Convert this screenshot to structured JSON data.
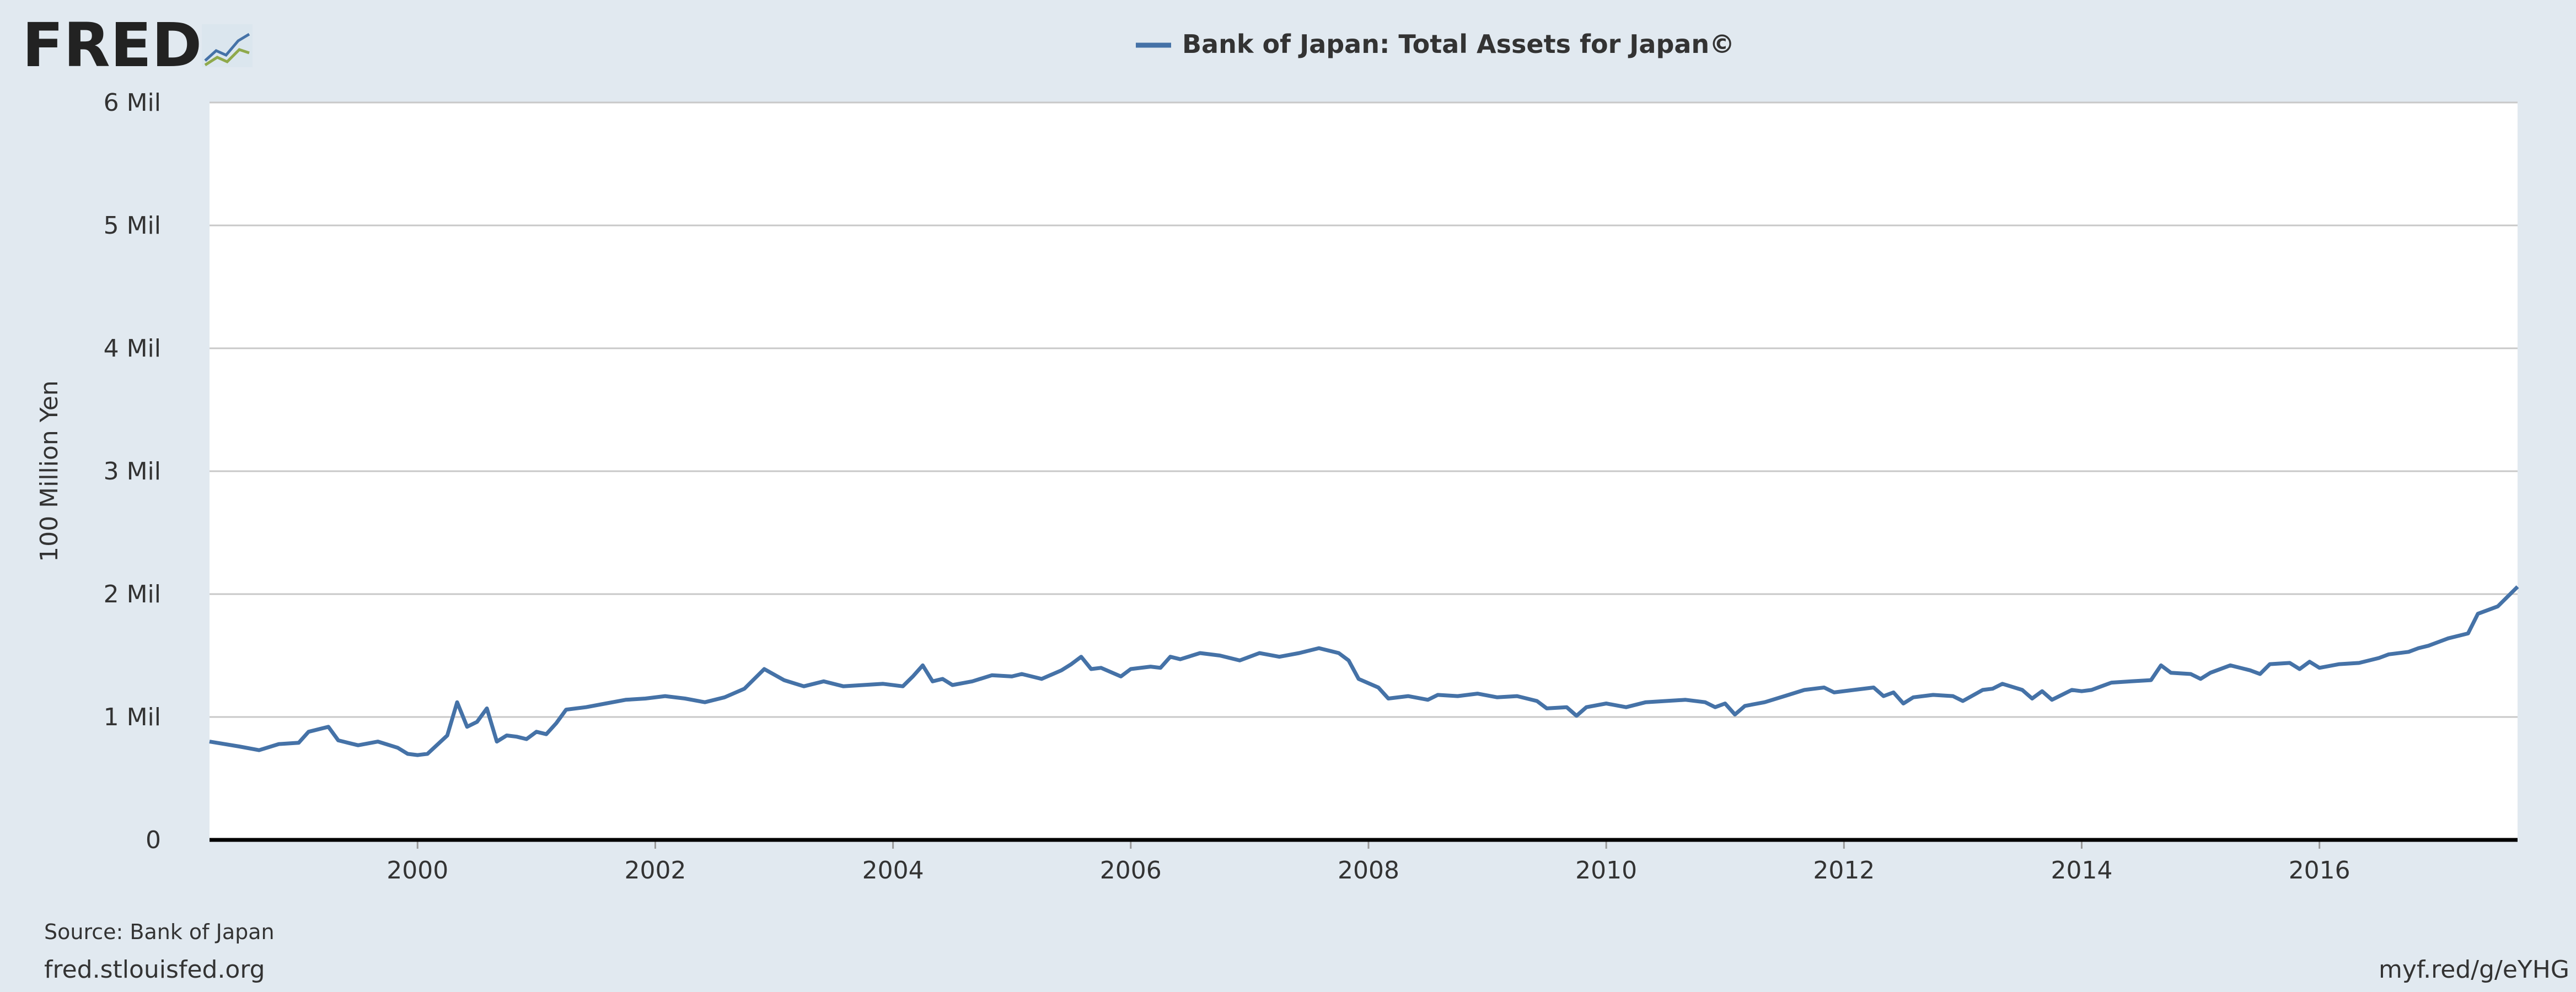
{
  "header": {
    "logo_text": "FRED",
    "legend_label": "Bank of Japan: Total Assets for Japan©"
  },
  "footer": {
    "source": "Source: Bank of Japan",
    "site": "fred.stlouisfed.org",
    "short_url": "myf.red/g/eYHG"
  },
  "colors": {
    "series": "#4572a7",
    "plot_bg": "#ffffff",
    "page_bg": "#e1e9f0",
    "grid": "#c8c8c8",
    "text": "#333333"
  },
  "icons": {
    "logo_graph": "chart-line-icon"
  },
  "chart_data": {
    "type": "line",
    "title": "",
    "ylabel": "100 Million Yen",
    "xlabel": "",
    "xlim": [
      1998.25,
      2017.6667
    ],
    "ylim": [
      0,
      6000000
    ],
    "grid": true,
    "legend_position": "top-center",
    "x_ticks": [
      {
        "value": 2000,
        "label": "2000"
      },
      {
        "value": 2002,
        "label": "2002"
      },
      {
        "value": 2004,
        "label": "2004"
      },
      {
        "value": 2006,
        "label": "2006"
      },
      {
        "value": 2008,
        "label": "2008"
      },
      {
        "value": 2010,
        "label": "2010"
      },
      {
        "value": 2012,
        "label": "2012"
      },
      {
        "value": 2014,
        "label": "2014"
      },
      {
        "value": 2016,
        "label": "2016"
      }
    ],
    "y_ticks": [
      {
        "value": 0,
        "label": "0"
      },
      {
        "value": 1000000,
        "label": "1 Mil"
      },
      {
        "value": 2000000,
        "label": "2 Mil"
      },
      {
        "value": 3000000,
        "label": "3 Mil"
      },
      {
        "value": 4000000,
        "label": "4 Mil"
      },
      {
        "value": 5000000,
        "label": "5 Mil"
      },
      {
        "value": 6000000,
        "label": "6 Mil"
      }
    ],
    "series": [
      {
        "name": "Bank of Japan: Total Assets for Japan©",
        "points": [
          [
            1998.25,
            800000
          ],
          [
            1998.5,
            760000
          ],
          [
            1998.667,
            730000
          ],
          [
            1998.833,
            780000
          ],
          [
            1999.0,
            790000
          ],
          [
            1999.083,
            880000
          ],
          [
            1999.25,
            920000
          ],
          [
            1999.333,
            810000
          ],
          [
            1999.5,
            770000
          ],
          [
            1999.667,
            800000
          ],
          [
            1999.833,
            750000
          ],
          [
            1999.917,
            700000
          ],
          [
            2000.0,
            690000
          ],
          [
            2000.083,
            700000
          ],
          [
            2000.25,
            850000
          ],
          [
            2000.333,
            1120000
          ],
          [
            2000.417,
            920000
          ],
          [
            2000.5,
            960000
          ],
          [
            2000.583,
            1070000
          ],
          [
            2000.667,
            800000
          ],
          [
            2000.75,
            850000
          ],
          [
            2000.833,
            840000
          ],
          [
            2000.917,
            820000
          ],
          [
            2001.0,
            880000
          ],
          [
            2001.083,
            860000
          ],
          [
            2001.167,
            950000
          ],
          [
            2001.25,
            1060000
          ],
          [
            2001.417,
            1080000
          ],
          [
            2001.583,
            1110000
          ],
          [
            2001.75,
            1140000
          ],
          [
            2001.917,
            1150000
          ],
          [
            2002.083,
            1170000
          ],
          [
            2002.25,
            1150000
          ],
          [
            2002.417,
            1120000
          ],
          [
            2002.583,
            1160000
          ],
          [
            2002.75,
            1230000
          ],
          [
            2002.917,
            1390000
          ],
          [
            2003.083,
            1300000
          ],
          [
            2003.25,
            1250000
          ],
          [
            2003.417,
            1290000
          ],
          [
            2003.583,
            1250000
          ],
          [
            2003.75,
            1260000
          ],
          [
            2003.917,
            1270000
          ],
          [
            2004.083,
            1250000
          ],
          [
            2004.167,
            1330000
          ],
          [
            2004.25,
            1420000
          ],
          [
            2004.333,
            1290000
          ],
          [
            2004.417,
            1310000
          ],
          [
            2004.5,
            1260000
          ],
          [
            2004.667,
            1290000
          ],
          [
            2004.833,
            1340000
          ],
          [
            2005.0,
            1330000
          ],
          [
            2005.083,
            1350000
          ],
          [
            2005.25,
            1310000
          ],
          [
            2005.417,
            1380000
          ],
          [
            2005.5,
            1430000
          ],
          [
            2005.583,
            1490000
          ],
          [
            2005.667,
            1390000
          ],
          [
            2005.75,
            1400000
          ],
          [
            2005.917,
            1330000
          ],
          [
            2006.0,
            1390000
          ],
          [
            2006.167,
            1410000
          ],
          [
            2006.25,
            1400000
          ],
          [
            2006.333,
            1490000
          ],
          [
            2006.417,
            1470000
          ],
          [
            2006.583,
            1520000
          ],
          [
            2006.75,
            1500000
          ],
          [
            2006.917,
            1460000
          ],
          [
            2007.083,
            1520000
          ],
          [
            2007.25,
            1490000
          ],
          [
            2007.417,
            1520000
          ],
          [
            2007.583,
            1560000
          ],
          [
            2007.75,
            1520000
          ],
          [
            2007.833,
            1460000
          ],
          [
            2007.917,
            1310000
          ],
          [
            2008.083,
            1240000
          ],
          [
            2008.167,
            1150000
          ],
          [
            2008.333,
            1170000
          ],
          [
            2008.5,
            1140000
          ],
          [
            2008.583,
            1180000
          ],
          [
            2008.75,
            1170000
          ],
          [
            2008.917,
            1190000
          ],
          [
            2009.083,
            1160000
          ],
          [
            2009.25,
            1170000
          ],
          [
            2009.417,
            1130000
          ],
          [
            2009.5,
            1070000
          ],
          [
            2009.667,
            1080000
          ],
          [
            2009.75,
            1010000
          ],
          [
            2009.833,
            1080000
          ],
          [
            2010.0,
            1110000
          ],
          [
            2010.167,
            1080000
          ],
          [
            2010.333,
            1120000
          ],
          [
            2010.5,
            1130000
          ],
          [
            2010.667,
            1140000
          ],
          [
            2010.833,
            1120000
          ],
          [
            2010.917,
            1080000
          ],
          [
            2011.0,
            1110000
          ],
          [
            2011.083,
            1020000
          ],
          [
            2011.167,
            1090000
          ],
          [
            2011.333,
            1120000
          ],
          [
            2011.5,
            1170000
          ],
          [
            2011.667,
            1220000
          ],
          [
            2011.833,
            1240000
          ],
          [
            2011.917,
            1200000
          ],
          [
            2012.083,
            1220000
          ],
          [
            2012.25,
            1240000
          ],
          [
            2012.333,
            1170000
          ],
          [
            2012.417,
            1200000
          ],
          [
            2012.5,
            1110000
          ],
          [
            2012.583,
            1160000
          ],
          [
            2012.75,
            1180000
          ],
          [
            2012.917,
            1170000
          ],
          [
            2013.0,
            1130000
          ],
          [
            2013.167,
            1220000
          ],
          [
            2013.25,
            1230000
          ],
          [
            2013.333,
            1270000
          ],
          [
            2013.5,
            1220000
          ],
          [
            2013.583,
            1150000
          ],
          [
            2013.667,
            1210000
          ],
          [
            2013.75,
            1140000
          ],
          [
            2013.917,
            1220000
          ],
          [
            2014.0,
            1210000
          ],
          [
            2014.083,
            1220000
          ],
          [
            2014.25,
            1280000
          ],
          [
            2014.417,
            1290000
          ],
          [
            2014.583,
            1300000
          ],
          [
            2014.667,
            1420000
          ],
          [
            2014.75,
            1360000
          ],
          [
            2014.917,
            1350000
          ],
          [
            2015.0,
            1310000
          ],
          [
            2015.083,
            1360000
          ],
          [
            2015.25,
            1420000
          ],
          [
            2015.417,
            1380000
          ],
          [
            2015.5,
            1350000
          ],
          [
            2015.583,
            1430000
          ],
          [
            2015.75,
            1440000
          ],
          [
            2015.833,
            1390000
          ],
          [
            2015.917,
            1450000
          ],
          [
            2016.0,
            1400000
          ],
          [
            2016.167,
            1430000
          ],
          [
            2016.333,
            1440000
          ],
          [
            2016.5,
            1480000
          ],
          [
            2016.583,
            1510000
          ],
          [
            2016.75,
            1530000
          ],
          [
            2016.833,
            1560000
          ],
          [
            2016.917,
            1580000
          ],
          [
            2017.0,
            1610000
          ],
          [
            2017.083,
            1640000
          ],
          [
            2017.25,
            1680000
          ],
          [
            2017.333,
            1840000
          ],
          [
            2017.5,
            1900000
          ],
          [
            2017.667,
            2060000
          ]
        ]
      }
    ]
  }
}
